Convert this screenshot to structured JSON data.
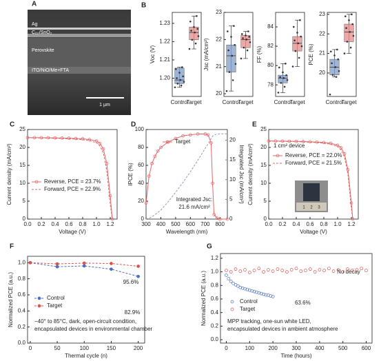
{
  "chart_data": [
    {
      "type": "image",
      "panel": "A",
      "labels": [
        "Ag",
        "C₆₀/SnO₂",
        "Perovskite",
        "ITO/NiO/Me+FTA"
      ],
      "scale_bar": "1 μm"
    },
    {
      "type": "box",
      "panel": "B",
      "ylabel": "Voc (V)",
      "categories": [
        "Control",
        "Target"
      ],
      "ylim": [
        1.19,
        1.236
      ],
      "yticks": [
        {
          "value": 1.2,
          "label": "1.20"
        },
        {
          "value": 1.21,
          "label": "1.21"
        },
        {
          "value": 1.22,
          "label": "1.22"
        },
        {
          "value": 1.23,
          "label": "1.23"
        }
      ],
      "boxes": [
        {
          "color": "#7f9cc9",
          "min": 1.195,
          "q1": 1.197,
          "median": 1.199,
          "q3": 1.2055,
          "max": 1.206,
          "points": [
            1.195,
            1.196,
            1.197,
            1.198,
            1.199,
            1.2,
            1.201,
            1.203,
            1.205,
            1.206
          ]
        },
        {
          "color": "#e58a8a",
          "min": 1.216,
          "q1": 1.221,
          "median": 1.225,
          "q3": 1.228,
          "max": 1.234,
          "points": [
            1.216,
            1.219,
            1.221,
            1.223,
            1.225,
            1.226,
            1.227,
            1.228,
            1.231,
            1.234
          ]
        }
      ]
    },
    {
      "type": "box",
      "ylabel": "Jsc (mA/cm²)",
      "categories": [
        "Control",
        "Target"
      ],
      "ylim": [
        19.9,
        23
      ],
      "yticks": [
        20,
        21,
        22,
        23
      ],
      "boxes": [
        {
          "color": "#7f9cc9",
          "min": 20.1,
          "q1": 20.8,
          "median": 21.4,
          "q3": 21.8,
          "max": 22.5,
          "points": [
            20.1,
            20.5,
            20.8,
            21.1,
            21.4,
            21.6,
            21.8,
            22.1,
            22.3,
            22.5
          ]
        },
        {
          "color": "#e58a8a",
          "min": 21.3,
          "q1": 21.7,
          "median": 22.0,
          "q3": 22.15,
          "max": 22.3,
          "points": [
            21.3,
            21.6,
            21.7,
            21.9,
            22.0,
            22.05,
            22.1,
            22.15,
            22.2,
            22.3
          ]
        }
      ]
    },
    {
      "type": "box",
      "ylabel": "FF (%)",
      "categories": [
        "Control",
        "Target"
      ],
      "ylim": [
        76.8,
        85.5
      ],
      "yticks": [
        78,
        80,
        82,
        84
      ],
      "boxes": [
        {
          "color": "#7f9cc9",
          "min": 77.2,
          "q1": 78.2,
          "median": 78.7,
          "q3": 79.0,
          "max": 80.2,
          "points": [
            77.2,
            77.8,
            78.2,
            78.5,
            78.7,
            78.8,
            79.0,
            79.3,
            79.8,
            80.2
          ]
        },
        {
          "color": "#e58a8a",
          "min": 79.9,
          "q1": 81.5,
          "median": 82.3,
          "q3": 83.0,
          "max": 84.7,
          "points": [
            79.9,
            80.8,
            81.5,
            82.0,
            82.3,
            82.6,
            83.0,
            83.4,
            84.0,
            84.7
          ]
        }
      ]
    },
    {
      "type": "box",
      "ylabel": "PCE (%)",
      "categories": [
        "Control",
        "Target"
      ],
      "ylim": [
        18.8,
        23.1
      ],
      "yticks": [
        20,
        21,
        22,
        23
      ],
      "boxes": [
        {
          "color": "#7f9cc9",
          "min": 19.8,
          "q1": 19.9,
          "median": 20.3,
          "q3": 20.7,
          "max": 21.2,
          "points": [
            18.9,
            19.8,
            19.9,
            20.1,
            20.3,
            20.5,
            20.7,
            20.9,
            21.1,
            21.2
          ]
        },
        {
          "color": "#e58a8a",
          "min": 21.0,
          "q1": 21.6,
          "median": 22.1,
          "q3": 22.5,
          "max": 23.0,
          "points": [
            21.0,
            21.3,
            21.6,
            21.9,
            22.1,
            22.3,
            22.5,
            22.7,
            22.9,
            23.0
          ]
        }
      ]
    },
    {
      "type": "line",
      "panel": "C",
      "xlabel": "Voltage (V)",
      "ylabel": "Current density (mA/cm²)",
      "xlim": [
        0,
        1.3
      ],
      "ylim": [
        0,
        25
      ],
      "xticks": [
        {
          "value": 0,
          "label": "0.0"
        },
        {
          "value": 0.2,
          "label": "0.2"
        },
        {
          "value": 0.4,
          "label": "0.4"
        },
        {
          "value": 0.6,
          "label": "0.6"
        },
        {
          "value": 0.8,
          "label": "0.8"
        },
        {
          "value": 1,
          "label": "1.0"
        },
        {
          "value": 1.2,
          "label": "1.2"
        }
      ],
      "yticks": [
        0,
        5,
        10,
        15,
        20,
        25
      ],
      "x": [
        0,
        0.1,
        0.2,
        0.3,
        0.4,
        0.5,
        0.6,
        0.7,
        0.8,
        0.9,
        1.0,
        1.05,
        1.1,
        1.15,
        1.2,
        1.23
      ],
      "series": [
        {
          "name": "Reverse, PCE = 23.7%",
          "color": "#e06666",
          "dash": false,
          "marker": "open-circle",
          "values": [
            22.75,
            22.73,
            22.71,
            22.69,
            22.66,
            22.62,
            22.57,
            22.5,
            22.4,
            22.2,
            21.8,
            21.1,
            19.6,
            15.5,
            6.5,
            0
          ]
        },
        {
          "name": "Forward, PCE = 22.9%",
          "color": "#e06666",
          "dash": true,
          "marker": "none",
          "values": [
            22.7,
            22.68,
            22.65,
            22.6,
            22.55,
            22.5,
            22.42,
            22.32,
            22.15,
            21.9,
            21.3,
            20.4,
            18.4,
            13.5,
            4.0,
            0
          ]
        }
      ]
    },
    {
      "type": "line",
      "panel": "D",
      "xlabel": "Wavelength (nm)",
      "ylabel": "IPCE (%)",
      "y2label": "Integrated Jsc (mA/cm²)",
      "y2color": "#6a86c0",
      "xlim": [
        300,
        850
      ],
      "ylim": [
        0,
        100
      ],
      "y2lim": [
        0,
        22.7
      ],
      "xticks": [
        300,
        400,
        500,
        600,
        700,
        800
      ],
      "yticks": [
        0,
        20,
        40,
        60,
        80,
        100
      ],
      "y2ticks": [
        0,
        5,
        10,
        15,
        20
      ],
      "annotations": [
        "Integrated Jsc:",
        "21.6 mA/cm²"
      ],
      "x": [
        300,
        320,
        340,
        360,
        380,
        400,
        450,
        500,
        550,
        600,
        650,
        700,
        720,
        740,
        750,
        760,
        780,
        800,
        850
      ],
      "series": [
        {
          "name": "Target",
          "color": "#e06666",
          "dash": false,
          "marker": "open-circle",
          "values": [
            18,
            48,
            62,
            70,
            76,
            80,
            86,
            90,
            93,
            94,
            95,
            95,
            94,
            85,
            40,
            5,
            1,
            0,
            0
          ]
        },
        {
          "color": "#8a9ab8",
          "dash": true,
          "marker": "none",
          "axis": "y2",
          "values": [
            0,
            0.2,
            0.6,
            1.1,
            1.7,
            2.3,
            4.4,
            6.8,
            9.3,
            12.0,
            14.9,
            17.9,
            19.1,
            20.4,
            21.0,
            21.3,
            21.5,
            21.6,
            21.6
          ]
        }
      ]
    },
    {
      "type": "line",
      "panel": "E",
      "xlabel": "Voltage (V)",
      "ylabel": "Current density (mA/cm²)",
      "xlim": [
        0,
        1.3
      ],
      "ylim": [
        0,
        25
      ],
      "xticks": [
        {
          "value": 0,
          "label": "0.0"
        },
        {
          "value": 0.2,
          "label": "0.2"
        },
        {
          "value": 0.4,
          "label": "0.4"
        },
        {
          "value": 0.6,
          "label": "0.6"
        },
        {
          "value": 0.8,
          "label": "0.8"
        },
        {
          "value": 1,
          "label": "1.0"
        },
        {
          "value": 1.2,
          "label": "1.2"
        }
      ],
      "yticks": [
        0,
        5,
        10,
        15,
        20,
        25
      ],
      "annotations": [
        "1 cm² device"
      ],
      "inset_labels": [
        "1",
        "2",
        "3"
      ],
      "x": [
        0,
        0.1,
        0.2,
        0.3,
        0.4,
        0.5,
        0.6,
        0.7,
        0.8,
        0.9,
        1.0,
        1.05,
        1.1,
        1.15,
        1.2,
        1.22
      ],
      "series": [
        {
          "name": "Reverse, PCE = 22.0%",
          "color": "#e06666",
          "dash": false,
          "marker": "open-circle",
          "values": [
            21.8,
            21.78,
            21.75,
            21.72,
            21.68,
            21.63,
            21.57,
            21.5,
            21.38,
            21.15,
            20.6,
            19.9,
            18.2,
            13.8,
            4.5,
            0
          ]
        },
        {
          "name": "Forward, PCE = 21.5%",
          "color": "#e06666",
          "dash": true,
          "marker": "none",
          "values": [
            21.75,
            21.72,
            21.69,
            21.65,
            21.6,
            21.54,
            21.46,
            21.36,
            21.2,
            20.9,
            20.2,
            19.3,
            17.3,
            12.5,
            3.0,
            0
          ]
        }
      ]
    },
    {
      "type": "line",
      "panel": "F",
      "xlabel": "Thermal cycle (n)",
      "ylabel": "Normalized PCE (a.u.)",
      "xlim": [
        -5,
        212
      ],
      "ylim": [
        0,
        1.08
      ],
      "xticks": [
        0,
        50,
        100,
        150,
        200
      ],
      "yticks": [
        {
          "value": 0,
          "label": "0.0"
        },
        {
          "value": 0.2,
          "label": "0.2"
        },
        {
          "value": 0.4,
          "label": "0.4"
        },
        {
          "value": 0.6,
          "label": "0.6"
        },
        {
          "value": 0.8,
          "label": "0.8"
        },
        {
          "value": 1,
          "label": "1.0"
        }
      ],
      "annotations": [
        "95.6%",
        "82.9%",
        "−40° to 85°C, dark, open-circuit condition,",
        "encapsulated devices in environmental chamber"
      ],
      "x": [
        0,
        50,
        100,
        150,
        200
      ],
      "series": [
        {
          "name": "Control",
          "color": "#4a6fbf",
          "dash": true,
          "marker": "filled-circle",
          "values": [
            1.0,
            0.95,
            0.96,
            0.92,
            0.829
          ]
        },
        {
          "name": "Target",
          "color": "#d9534f",
          "dash": true,
          "marker": "filled-circle",
          "values": [
            1.0,
            0.985,
            0.995,
            0.99,
            0.956
          ]
        }
      ]
    },
    {
      "type": "line",
      "panel": "G",
      "xlabel": "Time (hours)",
      "ylabel": "Normalized PCE (a.u.)",
      "xlim": [
        -25,
        625
      ],
      "ylim": [
        -0.05,
        1.27
      ],
      "xticks": [
        0,
        100,
        200,
        300,
        400,
        500,
        600
      ],
      "yticks": [
        {
          "value": 0,
          "label": "0.0"
        },
        {
          "value": 0.2,
          "label": "0.2"
        },
        {
          "value": 0.4,
          "label": "0.4"
        },
        {
          "value": 0.6,
          "label": "0.6"
        },
        {
          "value": 0.8,
          "label": "0.8"
        },
        {
          "value": 1,
          "label": "1.0"
        },
        {
          "value": 1.2,
          "label": "1.2"
        }
      ],
      "annotations": [
        "63.6%",
        "No decay",
        "MPP tracking, one-sun white LED,",
        "encapsulated devices in ambient atmosphere"
      ],
      "series": [
        {
          "name": "Control",
          "color": "#4a6fbf",
          "dash": false,
          "line": false,
          "marker": "open-circle",
          "x": [
            0,
            10,
            20,
            30,
            40,
            50,
            60,
            70,
            80,
            90,
            100,
            110,
            120,
            130,
            140,
            150,
            160,
            170,
            180,
            190,
            200
          ],
          "values": [
            0.95,
            0.9,
            0.86,
            0.83,
            0.81,
            0.79,
            0.77,
            0.76,
            0.75,
            0.74,
            0.73,
            0.72,
            0.71,
            0.7,
            0.69,
            0.68,
            0.67,
            0.66,
            0.655,
            0.645,
            0.636
          ]
        },
        {
          "name": "Target",
          "color": "#d9534f",
          "dash": false,
          "line": false,
          "marker": "open-circle",
          "x": [
            0,
            20,
            40,
            60,
            80,
            100,
            120,
            140,
            160,
            180,
            200,
            220,
            240,
            260,
            280,
            300,
            320,
            340,
            360,
            380,
            400,
            420,
            440,
            460,
            480,
            500,
            520,
            540,
            560,
            580,
            600
          ],
          "values": [
            1.02,
            1.0,
            1.04,
            1.01,
            1.03,
            0.99,
            1.02,
            1.05,
            1.0,
            1.03,
            1.01,
            1.04,
            1.02,
            1.0,
            1.03,
            1.05,
            1.01,
            1.02,
            1.04,
            1.0,
            1.03,
            1.02,
            1.05,
            1.01,
            1.03,
            1.0,
            1.04,
            1.02,
            1.03,
            1.05,
            1.02
          ]
        }
      ]
    }
  ]
}
